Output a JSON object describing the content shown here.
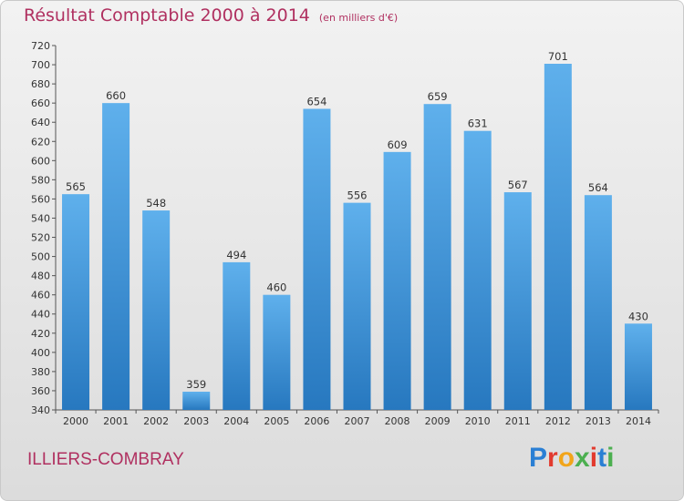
{
  "title": "Résultat Comptable 2000 à 2014",
  "subtitle": "(en milliers d'€)",
  "place": "ILLIERS-COMBRAY",
  "logo": {
    "text": "Proxiti",
    "colors": [
      "#2a7fd4",
      "#e23a2e",
      "#f2a51a",
      "#4caf50",
      "#e23a2e",
      "#2a7fd4",
      "#4caf50"
    ]
  },
  "colors": {
    "bar_light": "#5fb0ec",
    "bar_dark": "#2778bf",
    "title": "#b03060"
  },
  "chart_data": {
    "type": "bar",
    "title": "Résultat Comptable 2000 à 2014",
    "subtitle": "(en milliers d'€)",
    "categories": [
      "2000",
      "2001",
      "2002",
      "2003",
      "2004",
      "2005",
      "2006",
      "2007",
      "2008",
      "2009",
      "2010",
      "2011",
      "2012",
      "2013",
      "2014"
    ],
    "values": [
      565,
      660,
      548,
      359,
      494,
      460,
      654,
      556,
      609,
      659,
      631,
      567,
      701,
      564,
      430
    ],
    "ylim": [
      340,
      720
    ],
    "ytick_step": 20,
    "grid": false,
    "data_labels": true
  }
}
